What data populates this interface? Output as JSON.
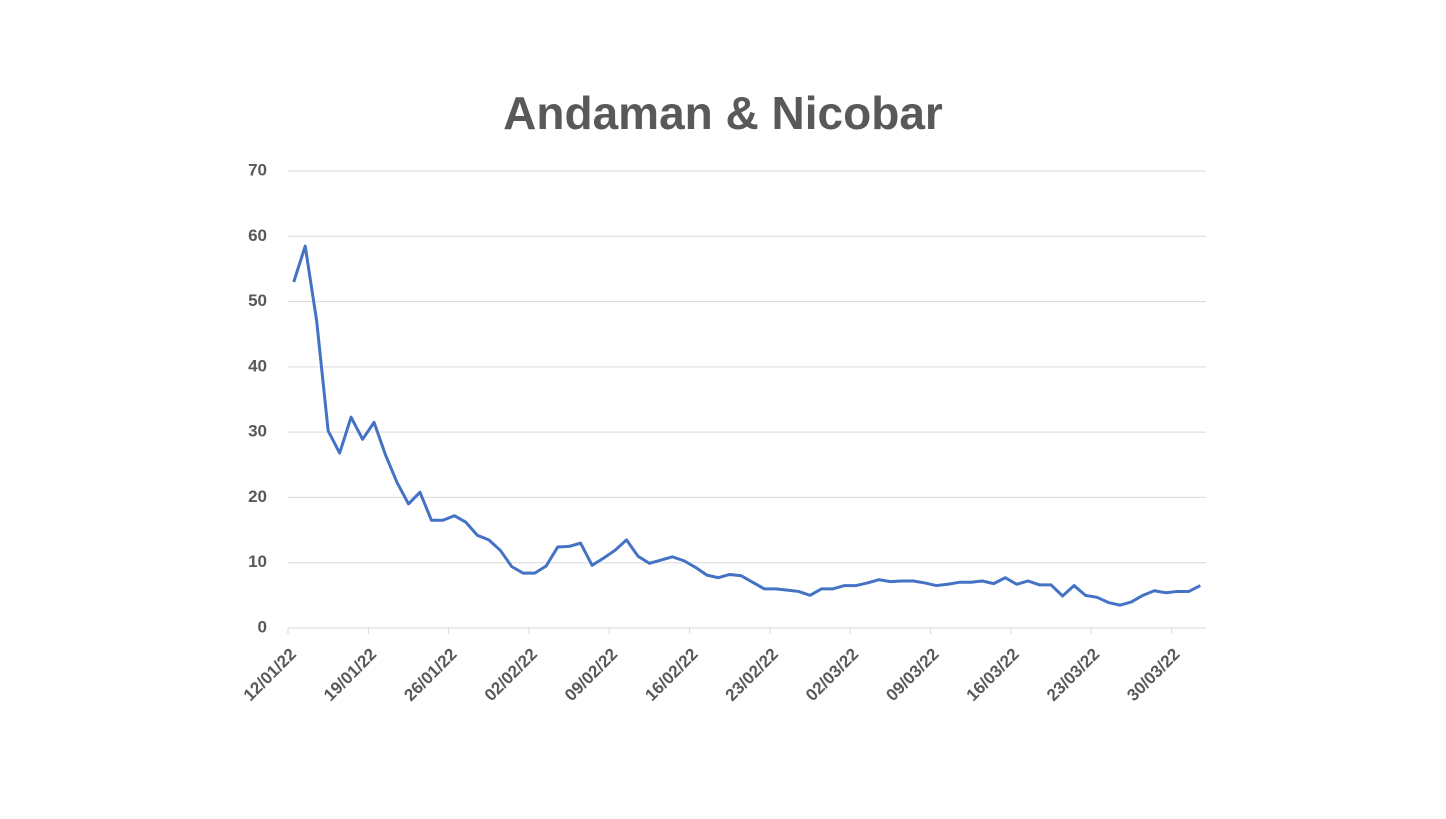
{
  "chart_data": {
    "type": "line",
    "title": "Andaman & Nicobar",
    "categories": [
      "12/01/22",
      null,
      null,
      null,
      null,
      null,
      null,
      "19/01/22",
      null,
      null,
      null,
      null,
      null,
      null,
      "26/01/22",
      null,
      null,
      null,
      null,
      null,
      null,
      "02/02/22",
      null,
      null,
      null,
      null,
      null,
      null,
      "09/02/22",
      null,
      null,
      null,
      null,
      null,
      null,
      "16/02/22",
      null,
      null,
      null,
      null,
      null,
      null,
      "23/02/22",
      null,
      null,
      null,
      null,
      null,
      null,
      "02/03/22",
      null,
      null,
      null,
      null,
      null,
      null,
      "09/03/22",
      null,
      null,
      null,
      null,
      null,
      null,
      "16/03/22",
      null,
      null,
      null,
      null,
      null,
      null,
      "23/03/22",
      null,
      null,
      null,
      null,
      null,
      null,
      "30/03/22",
      null,
      null
    ],
    "series": [
      {
        "color": "#4472c4",
        "values": [
          53,
          58.5,
          47,
          30.2,
          26.8,
          32.3,
          28.9,
          31.5,
          26.5,
          22.3,
          19,
          20.8,
          16.5,
          16.5,
          17.2,
          16.2,
          14.2,
          13.5,
          11.9,
          9.4,
          8.4,
          8.4,
          9.5,
          12.4,
          12.5,
          13,
          9.6,
          10.7,
          11.9,
          13.5,
          11,
          9.9,
          10.4,
          10.9,
          10.3,
          9.3,
          8.1,
          7.7,
          8.2,
          8,
          7,
          6,
          6,
          5.8,
          5.6,
          5,
          6,
          6,
          6.5,
          6.5,
          6.9,
          7.4,
          7.1,
          7.2,
          7.2,
          6.9,
          6.5,
          6.7,
          7,
          7,
          7.2,
          6.8,
          7.7,
          6.7,
          7.2,
          6.6,
          6.6,
          4.9,
          6.5,
          5,
          4.7,
          3.9,
          3.5,
          4,
          5,
          5.7,
          5.4,
          5.6,
          5.6,
          6.5
        ]
      }
    ],
    "ylim": [
      0,
      70
    ],
    "yticks": [
      0,
      10,
      20,
      30,
      40,
      50,
      60,
      70
    ],
    "grid": true
  }
}
